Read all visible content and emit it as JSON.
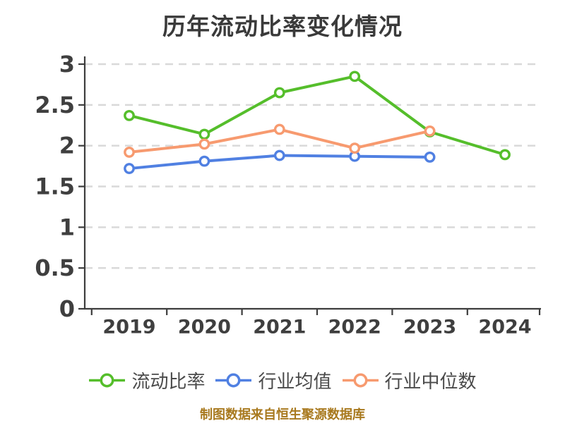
{
  "title": "历年流动比率变化情况",
  "caption": "制图数据来自恒生聚源数据库",
  "colors": {
    "current_ratio": "#55be2b",
    "industry_average": "#5080e2",
    "industry_median": "#f79a6f",
    "title_text": "#3a3a3a",
    "axis_text": "#3f3f3f",
    "legend_text": "#4a4a4a",
    "caption_text": "#a8791e",
    "spine": "#3d3d3d",
    "gridline": "#d9d9d9",
    "marker_fill": "#ffffff"
  },
  "chart_data": {
    "type": "line",
    "title": "历年流动比率变化情况",
    "categories": [
      "2019",
      "2020",
      "2021",
      "2022",
      "2023",
      "2024"
    ],
    "series": [
      {
        "name": "流动比率",
        "color": "#55be2b",
        "values": [
          2.37,
          2.14,
          2.65,
          2.85,
          2.17,
          1.89
        ]
      },
      {
        "name": "行业均值",
        "color": "#5080e2",
        "values": [
          1.72,
          1.81,
          1.88,
          1.87,
          1.86,
          null
        ]
      },
      {
        "name": "行业中位数",
        "color": "#f79a6f",
        "values": [
          1.92,
          2.02,
          2.2,
          1.97,
          2.18,
          null
        ]
      }
    ],
    "xlabel": "",
    "ylabel": "",
    "ylim": [
      0,
      3
    ],
    "yticks": [
      0,
      0.5,
      1,
      1.5,
      2,
      2.5,
      3
    ],
    "grid": "horizontal dashed",
    "legend_position": "bottom",
    "marker": "circle-white-fill",
    "source_note": "制图数据来自恒生聚源数据库"
  }
}
